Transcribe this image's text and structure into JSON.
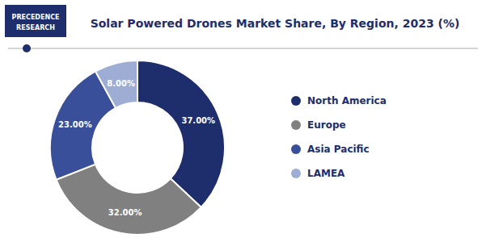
{
  "chart_data": {
    "type": "pie",
    "title": "Solar Powered Drones Market Share, By Region, 2023 (%)",
    "annotations": [
      "PRECEDENCE",
      "RESEARCH"
    ],
    "categories": [
      "North America",
      "Europe",
      "Asia Pacific",
      "LAMEA"
    ],
    "values": [
      37.0,
      32.0,
      23.0,
      8.0
    ],
    "value_labels": [
      "37.00%",
      "32.00%",
      "23.00%",
      "8.00%"
    ],
    "colors": [
      "#1e2d6b",
      "#808080",
      "#3a4f9a",
      "#9dadd4"
    ],
    "data_labels": true,
    "legend": "right"
  }
}
